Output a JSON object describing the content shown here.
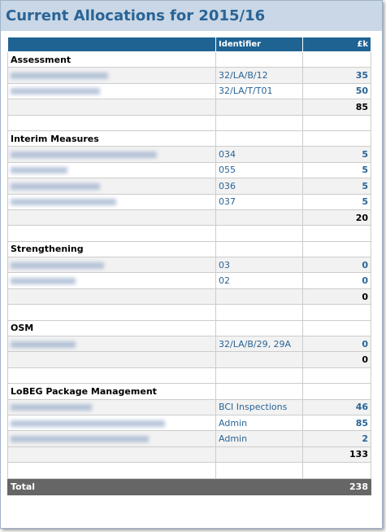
{
  "header": {
    "title": "Current Allocations for 2015/16"
  },
  "table": {
    "columns": [
      "Identifier",
      "£k"
    ],
    "sections": [
      {
        "title": "Assessment",
        "items": [
          {
            "identifier": "32/LA/B/12",
            "amount": 35
          },
          {
            "identifier": "32/LA/T/T01",
            "amount": 50
          }
        ],
        "subtotal": 85
      },
      {
        "title": "Interim Measures",
        "items": [
          {
            "identifier": "034",
            "amount": 5
          },
          {
            "identifier": "055",
            "amount": 5
          },
          {
            "identifier": "036",
            "amount": 5
          },
          {
            "identifier": "037",
            "amount": 5
          }
        ],
        "subtotal": 20
      },
      {
        "title": "Strengthening",
        "items": [
          {
            "identifier": "03",
            "amount": 0
          },
          {
            "identifier": "02",
            "amount": 0
          }
        ],
        "subtotal": 0
      },
      {
        "title": "OSM",
        "items": [
          {
            "identifier": "32/LA/B/29, 29A",
            "amount": 0
          }
        ],
        "subtotal": 0
      },
      {
        "title": "LoBEG Package Management",
        "items": [
          {
            "identifier": "BCI Inspections",
            "amount": 46
          },
          {
            "identifier": "Admin",
            "amount": 85
          },
          {
            "identifier": "Admin",
            "amount": 2
          }
        ],
        "subtotal": 133
      }
    ],
    "total_label": "Total",
    "total": 238
  }
}
